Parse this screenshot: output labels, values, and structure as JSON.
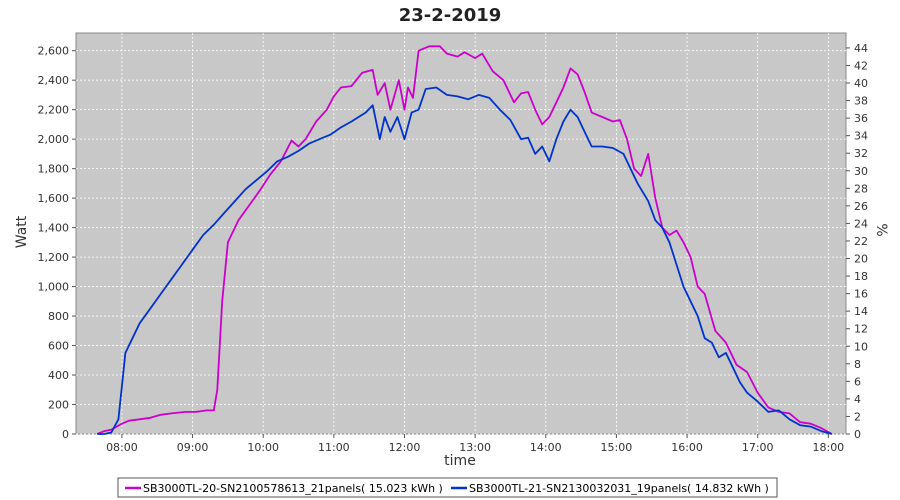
{
  "chart_data": {
    "type": "line",
    "title": "23-2-2019",
    "xlabel": "time",
    "ylabel": "Watt",
    "y2label": "%",
    "xlim": [
      7.35,
      18.25
    ],
    "ylim": [
      0,
      2720
    ],
    "y2lim": [
      0,
      45.7
    ],
    "x_ticks": [
      8,
      9,
      10,
      11,
      12,
      13,
      14,
      15,
      16,
      17,
      18
    ],
    "x_tick_labels": [
      "08:00",
      "09:00",
      "10:00",
      "11:00",
      "12:00",
      "13:00",
      "14:00",
      "15:00",
      "16:00",
      "17:00",
      "18:00"
    ],
    "y_ticks": [
      0,
      200,
      400,
      600,
      800,
      1000,
      1200,
      1400,
      1600,
      1800,
      2000,
      2200,
      2400,
      2600
    ],
    "y_tick_labels": [
      "0",
      "200",
      "400",
      "600",
      "800",
      "1,000",
      "1,200",
      "1,400",
      "1,600",
      "1,800",
      "2,000",
      "2,200",
      "2,400",
      "2,600"
    ],
    "y2_ticks": [
      0,
      2,
      4,
      6,
      8,
      10,
      12,
      14,
      16,
      18,
      20,
      22,
      24,
      26,
      28,
      30,
      32,
      34,
      36,
      38,
      40,
      42,
      44
    ],
    "grid": true,
    "legend_position": "bottom",
    "plot_background": "#c8c8c8",
    "series": [
      {
        "name": "SB3000TL-20-SN2100578613_21panels( 15.023 kWh )",
        "color": "#cc00cc",
        "x": [
          7.65,
          7.75,
          7.85,
          8.0,
          8.1,
          8.25,
          8.4,
          8.55,
          8.7,
          8.9,
          9.05,
          9.2,
          9.3,
          9.35,
          9.42,
          9.5,
          9.55,
          9.65,
          9.8,
          9.95,
          10.1,
          10.25,
          10.4,
          10.5,
          10.6,
          10.75,
          10.9,
          11.0,
          11.1,
          11.25,
          11.4,
          11.55,
          11.62,
          11.72,
          11.8,
          11.92,
          12.0,
          12.05,
          12.12,
          12.2,
          12.35,
          12.5,
          12.6,
          12.75,
          12.85,
          13.0,
          13.1,
          13.25,
          13.4,
          13.55,
          13.65,
          13.75,
          13.85,
          13.95,
          14.05,
          14.15,
          14.25,
          14.35,
          14.45,
          14.55,
          14.65,
          14.8,
          14.95,
          15.05,
          15.15,
          15.25,
          15.35,
          15.45,
          15.55,
          15.65,
          15.75,
          15.85,
          15.95,
          16.05,
          16.15,
          16.25,
          16.4,
          16.55,
          16.7,
          16.85,
          17.0,
          17.15,
          17.3,
          17.45,
          17.6,
          17.75,
          17.9,
          18.05
        ],
        "y": [
          0,
          20,
          30,
          70,
          90,
          100,
          110,
          130,
          140,
          150,
          150,
          160,
          160,
          300,
          900,
          1300,
          1350,
          1450,
          1550,
          1650,
          1760,
          1850,
          1990,
          1950,
          2000,
          2120,
          2200,
          2290,
          2350,
          2360,
          2450,
          2470,
          2300,
          2380,
          2200,
          2400,
          2200,
          2350,
          2280,
          2600,
          2630,
          2630,
          2580,
          2560,
          2590,
          2550,
          2580,
          2460,
          2400,
          2250,
          2310,
          2320,
          2200,
          2100,
          2150,
          2250,
          2350,
          2480,
          2440,
          2320,
          2180,
          2150,
          2120,
          2130,
          2000,
          1800,
          1750,
          1900,
          1600,
          1400,
          1350,
          1380,
          1300,
          1200,
          1000,
          950,
          700,
          620,
          470,
          420,
          280,
          180,
          150,
          140,
          80,
          70,
          40,
          0
        ]
      },
      {
        "name": "SB3000TL-21-SN2130032031_19panels( 14.832 kWh )",
        "color": "#0033cc",
        "x": [
          7.65,
          7.75,
          7.85,
          7.95,
          8.05,
          8.15,
          8.25,
          8.4,
          8.55,
          8.7,
          8.85,
          9.0,
          9.15,
          9.3,
          9.45,
          9.6,
          9.75,
          9.9,
          10.05,
          10.2,
          10.35,
          10.5,
          10.65,
          10.8,
          10.95,
          11.1,
          11.25,
          11.35,
          11.45,
          11.55,
          11.65,
          11.72,
          11.8,
          11.9,
          12.0,
          12.1,
          12.2,
          12.3,
          12.45,
          12.6,
          12.75,
          12.9,
          13.05,
          13.2,
          13.35,
          13.5,
          13.65,
          13.75,
          13.85,
          13.95,
          14.05,
          14.15,
          14.25,
          14.35,
          14.45,
          14.55,
          14.65,
          14.8,
          14.95,
          15.1,
          15.2,
          15.3,
          15.45,
          15.55,
          15.65,
          15.75,
          15.85,
          15.95,
          16.05,
          16.15,
          16.25,
          16.35,
          16.45,
          16.55,
          16.65,
          16.75,
          16.85,
          17.0,
          17.15,
          17.3,
          17.45,
          17.6,
          17.75,
          17.9,
          18.05
        ],
        "y": [
          0,
          0,
          10,
          100,
          550,
          650,
          750,
          850,
          950,
          1050,
          1150,
          1250,
          1350,
          1420,
          1500,
          1580,
          1660,
          1720,
          1780,
          1850,
          1880,
          1920,
          1970,
          2000,
          2030,
          2080,
          2120,
          2150,
          2180,
          2230,
          2000,
          2150,
          2050,
          2150,
          2000,
          2180,
          2200,
          2340,
          2350,
          2300,
          2290,
          2270,
          2300,
          2280,
          2200,
          2130,
          2000,
          2010,
          1900,
          1950,
          1850,
          2000,
          2120,
          2200,
          2150,
          2050,
          1950,
          1950,
          1940,
          1900,
          1800,
          1700,
          1580,
          1450,
          1400,
          1300,
          1150,
          1000,
          900,
          800,
          650,
          620,
          520,
          550,
          450,
          350,
          280,
          220,
          150,
          160,
          100,
          60,
          50,
          20,
          0
        ]
      }
    ]
  }
}
